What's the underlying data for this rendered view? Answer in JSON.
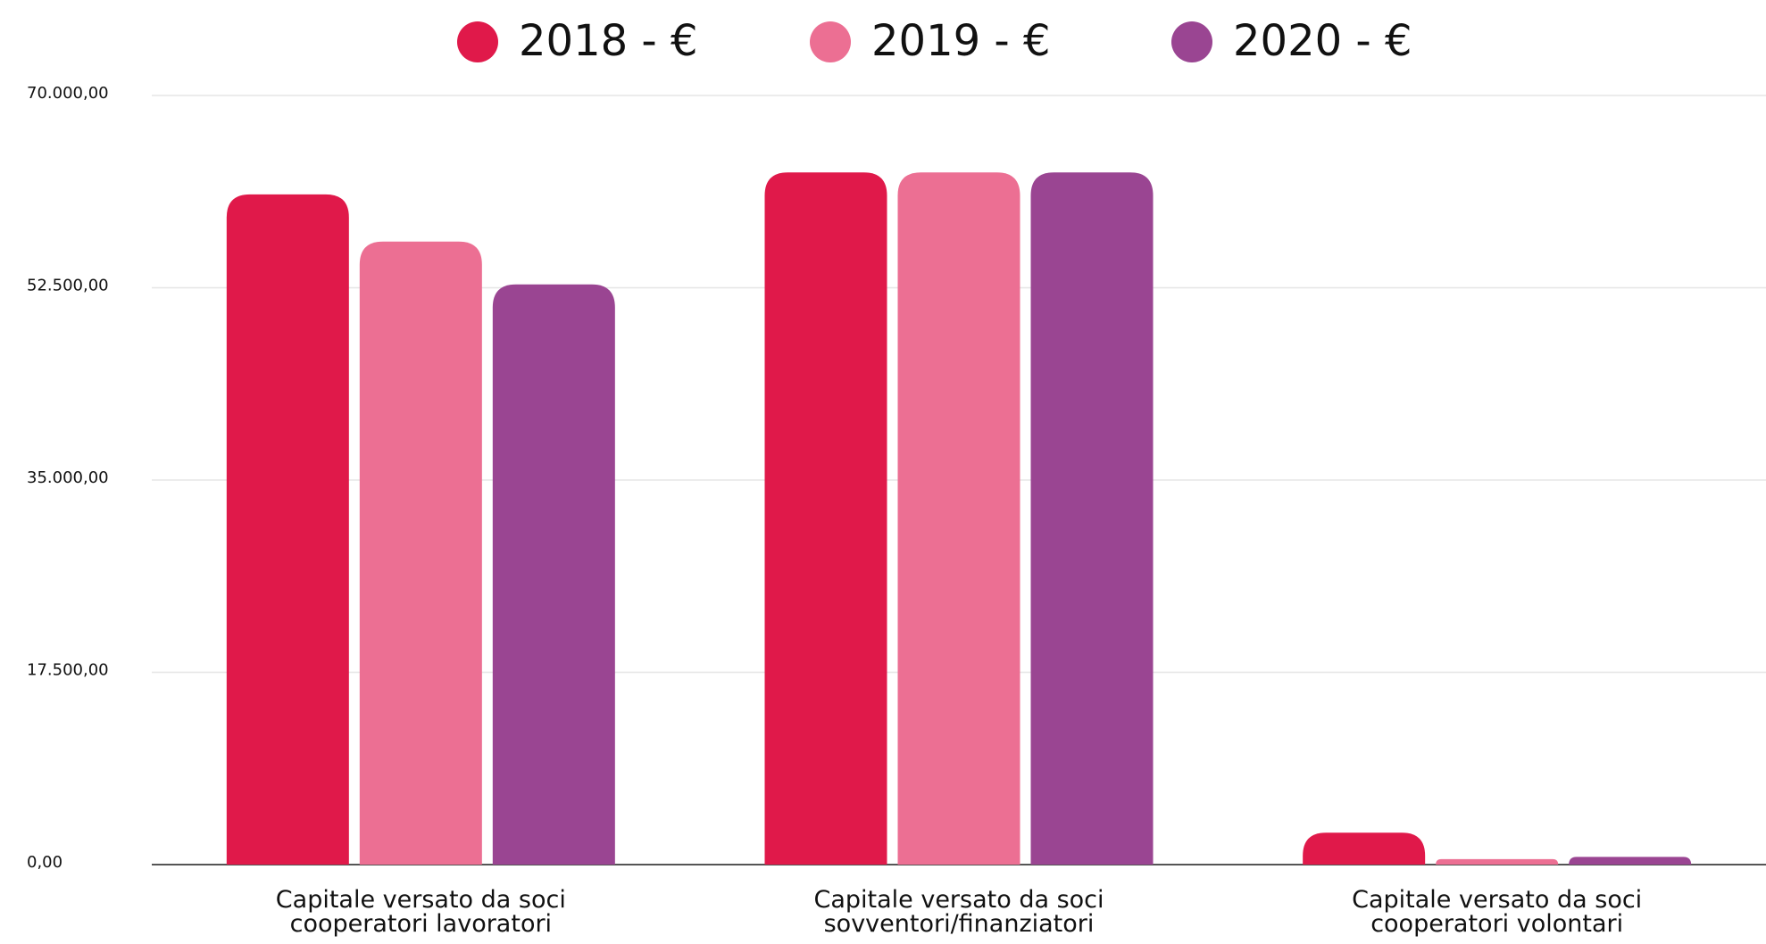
{
  "chart_data": {
    "type": "bar",
    "categories": [
      "Capitale versato da soci\ncooperatori lavoratori",
      "Capitale versato da soci\nsovventori/finanziatori",
      "Capitale versato da soci\ncooperatori volontari"
    ],
    "series": [
      {
        "name": "2018 - €",
        "color": "#e0194a",
        "values": [
          61000,
          63000,
          2900
        ]
      },
      {
        "name": "2019 - €",
        "color": "#ec6f93",
        "values": [
          56700,
          63000,
          500
        ]
      },
      {
        "name": "2020 - €",
        "color": "#9a4592",
        "values": [
          52800,
          63000,
          700
        ]
      }
    ],
    "ylim": [
      0,
      70000
    ],
    "yticks": [
      {
        "value": 0,
        "label": "0,00"
      },
      {
        "value": 17500,
        "label": "17.500,00"
      },
      {
        "value": 35000,
        "label": "35.000,00"
      },
      {
        "value": 52500,
        "label": "52.500,00"
      },
      {
        "value": 70000,
        "label": "70.000,00"
      }
    ],
    "grid": true,
    "legend": "top"
  }
}
